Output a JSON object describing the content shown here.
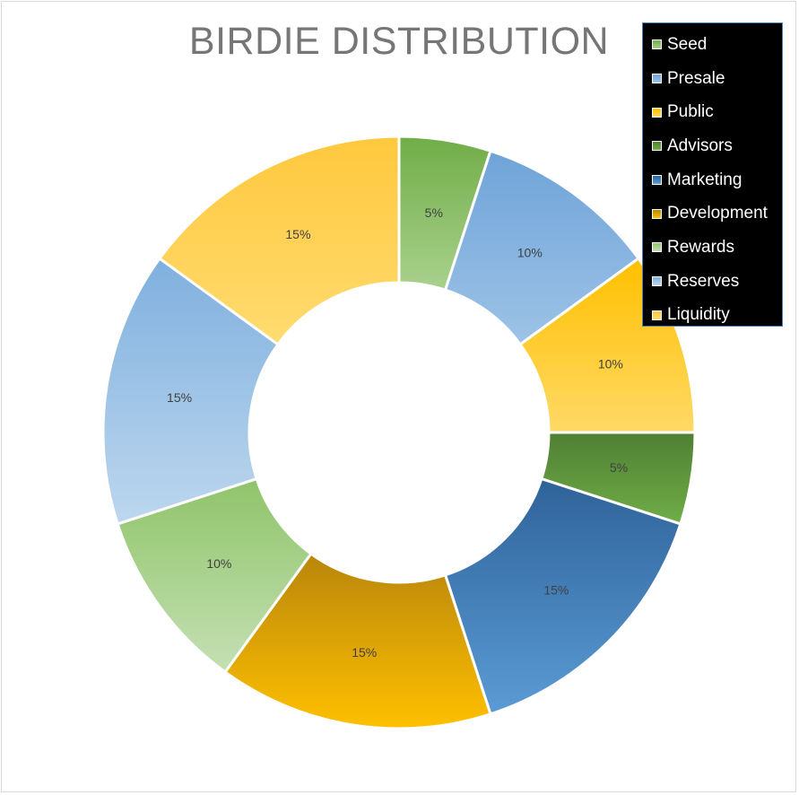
{
  "chart_data": {
    "type": "pie",
    "variant": "doughnut",
    "title": "BIRDIE DISTRIBUTION",
    "legend_position": "top-right",
    "categories": [
      "Seed",
      "Presale",
      "Public",
      "Advisors",
      "Marketing",
      "Development",
      "Rewards",
      "Reserves",
      "Liquidity"
    ],
    "values": [
      5,
      10,
      10,
      5,
      15,
      15,
      10,
      15,
      15
    ],
    "labels": [
      "5%",
      "10%",
      "10%",
      "5%",
      "15%",
      "15%",
      "10%",
      "15%",
      "15%"
    ],
    "colors": [
      [
        "#a9d18e",
        "#70ad47"
      ],
      [
        "#9dc3e6",
        "#6fa3d8"
      ],
      [
        "#ffd966",
        "#ffc000"
      ],
      [
        "#70ad47",
        "#4f7f33"
      ],
      [
        "#5b9bd5",
        "#2e6399"
      ],
      [
        "#ffc000",
        "#b8860b"
      ],
      [
        "#c5e0b4",
        "#8fc46a"
      ],
      [
        "#bdd7ee",
        "#7fb0de"
      ],
      [
        "#ffdb70",
        "#ffc83d"
      ]
    ]
  }
}
